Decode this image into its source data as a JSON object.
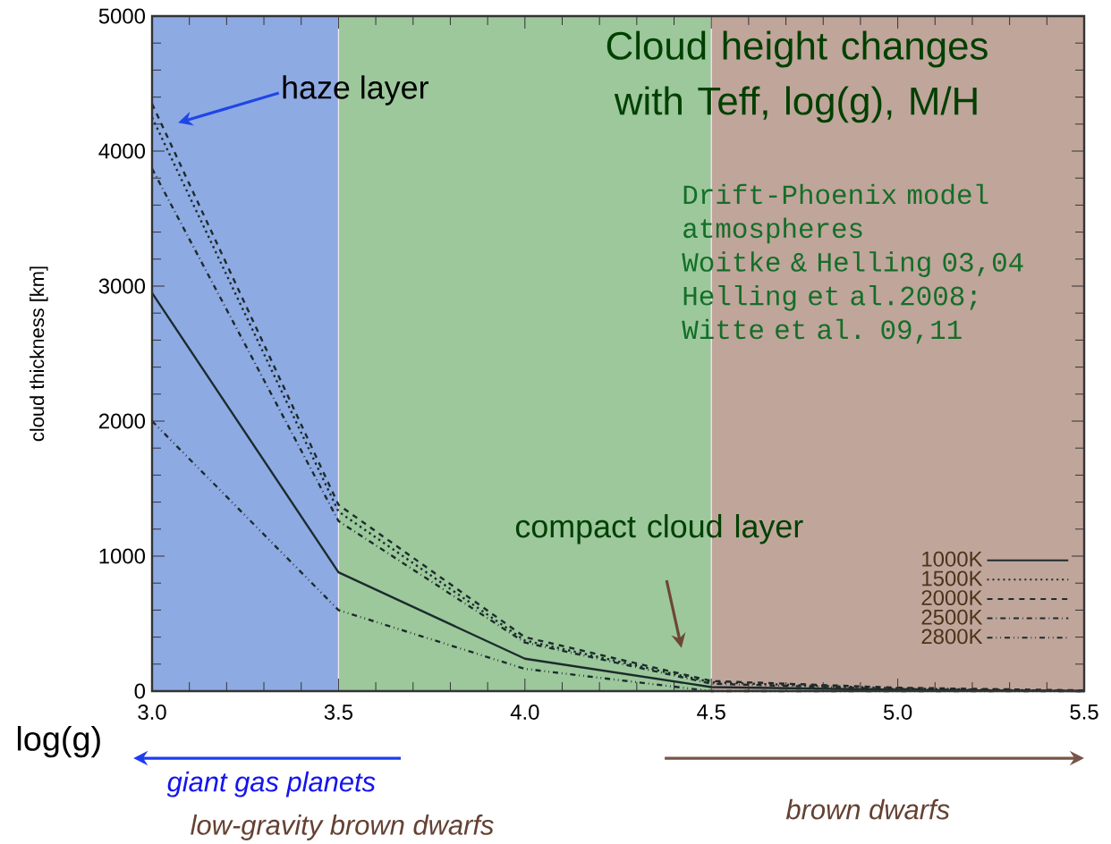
{
  "chart_data": {
    "type": "line",
    "title": "Cloud height changes with Teff, log(g), M/H",
    "xlabel": "log(g)",
    "ylabel": "cloud thickness [km]",
    "x": [
      3.0,
      3.5,
      4.0,
      4.5,
      5.0,
      5.5
    ],
    "series": [
      {
        "name": "1000K",
        "color": "#1c2b2b",
        "line_style": "solid",
        "values": [
          2950,
          880,
          240,
          30,
          10,
          0
        ]
      },
      {
        "name": "1500K",
        "color": "#1c2b2b",
        "line_style": "dotted",
        "values": [
          4250,
          1330,
          375,
          65,
          20,
          0
        ]
      },
      {
        "name": "2000K",
        "color": "#1c2b2b",
        "line_style": "dashed",
        "values": [
          4350,
          1380,
          400,
          75,
          25,
          5
        ]
      },
      {
        "name": "2500K",
        "color": "#1c2b2b",
        "line_style": "dashdot",
        "values": [
          3870,
          1260,
          360,
          55,
          15,
          0
        ]
      },
      {
        "name": "2800K",
        "color": "#1c2b2b",
        "line_style": "dashdotdot",
        "values": [
          2000,
          600,
          165,
          0,
          0,
          0
        ]
      }
    ],
    "xlim": [
      3.0,
      5.5
    ],
    "ylim": [
      0,
      5000
    ],
    "xticks": [
      {
        "value": 3.0,
        "label": "3.0"
      },
      {
        "value": 3.5,
        "label": "3.5"
      },
      {
        "value": 4.0,
        "label": "4.0"
      },
      {
        "value": 4.5,
        "label": "4.5"
      },
      {
        "value": 5.0,
        "label": "5.0"
      },
      {
        "value": 5.5,
        "label": "5.5"
      }
    ],
    "yticks": [
      0,
      1000,
      2000,
      3000,
      4000,
      5000
    ],
    "bands": [
      {
        "axis": "x",
        "from": 3.0,
        "to": 3.5,
        "color": "#8eaae3"
      },
      {
        "axis": "x",
        "from": 3.5,
        "to": 4.5,
        "color": "#9cc89c"
      },
      {
        "axis": "x",
        "from": 4.5,
        "to": 5.5,
        "color": "#c0a59b"
      }
    ],
    "legend": "bottom right",
    "annotations": [
      "haze layer",
      "compact cloud layer",
      "Drift-Phoenix model atmospheres",
      "Woitke & Helling 03,04",
      "Helling et al.2008;",
      "Witte et al. 09,11",
      "giant gas planets",
      "low-gravity brown dwarfs",
      "brown dwarfs"
    ]
  }
}
